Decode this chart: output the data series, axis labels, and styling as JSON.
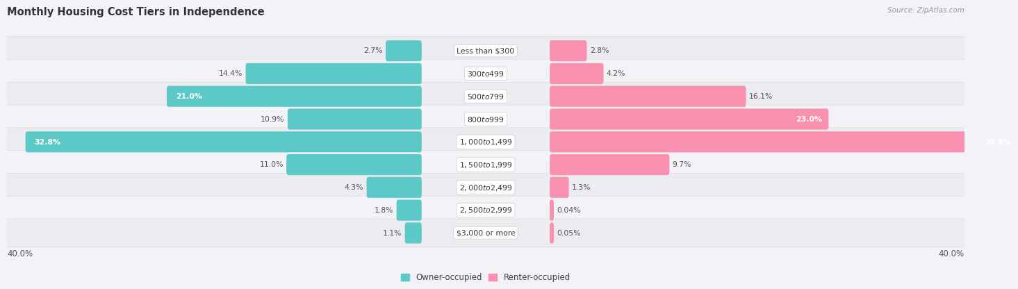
{
  "title": "Monthly Housing Cost Tiers in Independence",
  "source": "Source: ZipAtlas.com",
  "categories": [
    "Less than $300",
    "$300 to $499",
    "$500 to $799",
    "$800 to $999",
    "$1,000 to $1,499",
    "$1,500 to $1,999",
    "$2,000 to $2,499",
    "$2,500 to $2,999",
    "$3,000 or more"
  ],
  "owner_values": [
    2.7,
    14.4,
    21.0,
    10.9,
    32.8,
    11.0,
    4.3,
    1.8,
    1.1
  ],
  "renter_values": [
    2.8,
    4.2,
    16.1,
    23.0,
    38.8,
    9.7,
    1.3,
    0.04,
    0.05
  ],
  "owner_color": "#5CC8C8",
  "renter_color": "#F890AF",
  "background_color": "#F2F2F7",
  "row_color_even": "#EBEBF0",
  "row_color_odd": "#F2F2F7",
  "axis_max": 40.0,
  "legend_owner": "Owner-occupied",
  "legend_renter": "Renter-occupied",
  "x_axis_label": "40.0%"
}
